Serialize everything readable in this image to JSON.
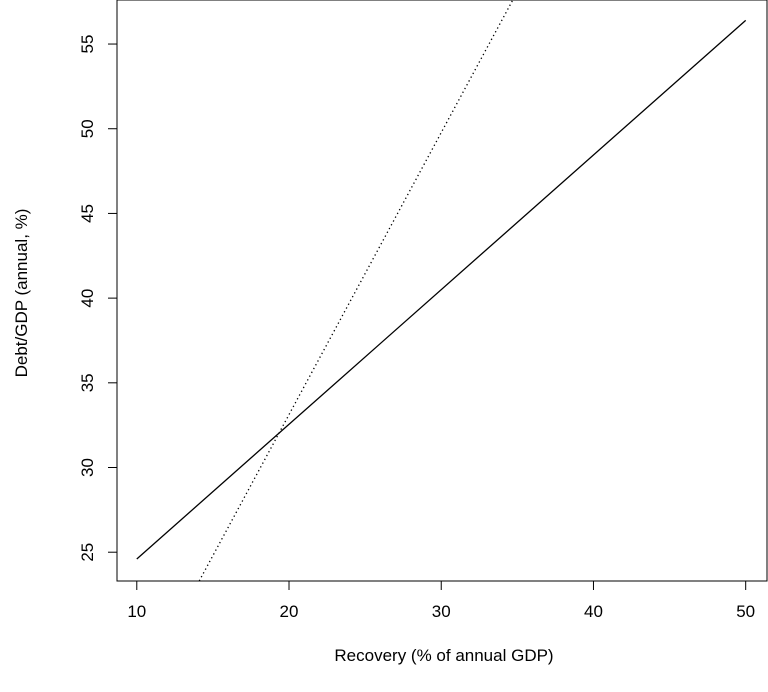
{
  "chart_data": {
    "type": "line",
    "title": "",
    "xlabel": "Recovery (% of annual GDP)",
    "ylabel": "Debt/GDP (annual, %)",
    "xlim": [
      8.7,
      51.4
    ],
    "ylim": [
      23.3,
      57.6
    ],
    "x_ticks": [
      10,
      20,
      30,
      40,
      50
    ],
    "y_ticks": [
      25,
      30,
      35,
      40,
      45,
      50,
      55
    ],
    "grid": false,
    "legend": "none",
    "series": [
      {
        "style": "solid",
        "x": [
          10,
          50
        ],
        "y": [
          24.6,
          56.4
        ]
      },
      {
        "style": "dotted",
        "x": [
          14.1,
          34.7
        ],
        "y": [
          23.3,
          57.6
        ]
      }
    ]
  }
}
